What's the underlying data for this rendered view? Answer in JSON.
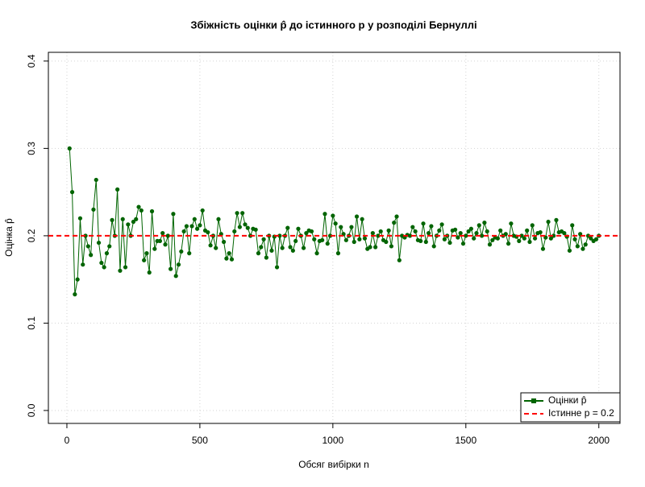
{
  "chart_data": {
    "type": "line",
    "title": "Збіжність оцінки p̂ до істинного p у розподілі Бернуллі",
    "x_label": "Обсяг вибірки n",
    "y_label": "Оцінка p̂",
    "x": [
      10,
      20,
      30,
      40,
      50,
      60,
      70,
      80,
      90,
      100,
      110,
      120,
      130,
      140,
      150,
      160,
      170,
      180,
      190,
      200,
      210,
      220,
      230,
      240,
      250,
      260,
      270,
      280,
      290,
      300,
      310,
      320,
      330,
      340,
      350,
      360,
      370,
      380,
      390,
      400,
      410,
      420,
      430,
      440,
      450,
      460,
      470,
      480,
      490,
      500,
      510,
      520,
      530,
      540,
      550,
      560,
      570,
      580,
      590,
      600,
      610,
      620,
      630,
      640,
      650,
      660,
      670,
      680,
      690,
      700,
      710,
      720,
      730,
      740,
      750,
      760,
      770,
      780,
      790,
      800,
      810,
      820,
      830,
      840,
      850,
      860,
      870,
      880,
      890,
      900,
      910,
      920,
      930,
      940,
      950,
      960,
      970,
      980,
      990,
      1000,
      1010,
      1020,
      1030,
      1040,
      1050,
      1060,
      1070,
      1080,
      1090,
      1100,
      1110,
      1120,
      1130,
      1140,
      1150,
      1160,
      1170,
      1180,
      1190,
      1200,
      1210,
      1220,
      1230,
      1240,
      1250,
      1260,
      1270,
      1280,
      1290,
      1300,
      1310,
      1320,
      1330,
      1340,
      1350,
      1360,
      1370,
      1380,
      1390,
      1400,
      1410,
      1420,
      1430,
      1440,
      1450,
      1460,
      1470,
      1480,
      1490,
      1500,
      1510,
      1520,
      1530,
      1540,
      1550,
      1560,
      1570,
      1580,
      1590,
      1600,
      1610,
      1620,
      1630,
      1640,
      1650,
      1660,
      1670,
      1680,
      1690,
      1700,
      1710,
      1720,
      1730,
      1740,
      1750,
      1760,
      1770,
      1780,
      1790,
      1800,
      1810,
      1820,
      1830,
      1840,
      1850,
      1860,
      1870,
      1880,
      1890,
      1900,
      1910,
      1920,
      1930,
      1940,
      1950,
      1960,
      1970,
      1980,
      1990,
      2000
    ],
    "series": [
      {
        "name": "Оцінки p̂",
        "color": "#006400",
        "values": [
          0.3,
          0.25,
          0.133,
          0.15,
          0.22,
          0.167,
          0.2,
          0.188,
          0.178,
          0.23,
          0.264,
          0.192,
          0.169,
          0.164,
          0.18,
          0.188,
          0.218,
          0.2,
          0.253,
          0.16,
          0.219,
          0.164,
          0.213,
          0.2,
          0.216,
          0.219,
          0.233,
          0.229,
          0.172,
          0.18,
          0.158,
          0.228,
          0.185,
          0.194,
          0.194,
          0.203,
          0.19,
          0.2,
          0.162,
          0.225,
          0.154,
          0.167,
          0.182,
          0.205,
          0.211,
          0.18,
          0.211,
          0.219,
          0.208,
          0.212,
          0.229,
          0.206,
          0.204,
          0.189,
          0.2,
          0.186,
          0.219,
          0.202,
          0.193,
          0.174,
          0.18,
          0.173,
          0.205,
          0.226,
          0.21,
          0.226,
          0.213,
          0.209,
          0.2,
          0.208,
          0.207,
          0.18,
          0.187,
          0.196,
          0.175,
          0.2,
          0.183,
          0.199,
          0.164,
          0.2,
          0.186,
          0.2,
          0.209,
          0.187,
          0.183,
          0.194,
          0.208,
          0.2,
          0.186,
          0.203,
          0.206,
          0.205,
          0.196,
          0.18,
          0.194,
          0.195,
          0.225,
          0.191,
          0.2,
          0.223,
          0.214,
          0.18,
          0.21,
          0.202,
          0.195,
          0.2,
          0.21,
          0.193,
          0.222,
          0.196,
          0.219,
          0.197,
          0.185,
          0.187,
          0.203,
          0.187,
          0.2,
          0.205,
          0.195,
          0.193,
          0.206,
          0.188,
          0.215,
          0.222,
          0.172,
          0.2,
          0.198,
          0.201,
          0.2,
          0.21,
          0.205,
          0.195,
          0.194,
          0.214,
          0.193,
          0.203,
          0.211,
          0.188,
          0.2,
          0.206,
          0.213,
          0.196,
          0.2,
          0.192,
          0.206,
          0.207,
          0.198,
          0.203,
          0.191,
          0.2,
          0.205,
          0.208,
          0.197,
          0.203,
          0.212,
          0.2,
          0.215,
          0.205,
          0.19,
          0.195,
          0.198,
          0.197,
          0.206,
          0.2,
          0.202,
          0.191,
          0.214,
          0.2,
          0.199,
          0.194,
          0.2,
          0.197,
          0.206,
          0.193,
          0.212,
          0.197,
          0.203,
          0.204,
          0.185,
          0.198,
          0.216,
          0.197,
          0.2,
          0.218,
          0.204,
          0.205,
          0.203,
          0.199,
          0.183,
          0.212,
          0.196,
          0.188,
          0.202,
          0.185,
          0.19,
          0.2,
          0.197,
          0.194,
          0.196,
          0.2
        ]
      }
    ],
    "reference_line": {
      "name": "Істинне p = 0.2",
      "value": 0.2,
      "color": "#ff0000"
    },
    "xlim": [
      -69.6,
      2079.6
    ],
    "ylim": [
      -0.0148,
      0.41
    ],
    "xticks": [
      0,
      500,
      1000,
      1500,
      2000
    ],
    "yticks": [
      {
        "value": 0,
        "label": "0.0"
      },
      0.1,
      0.2,
      0.3,
      0.4
    ],
    "grid": true,
    "legend": "bottom-right"
  }
}
